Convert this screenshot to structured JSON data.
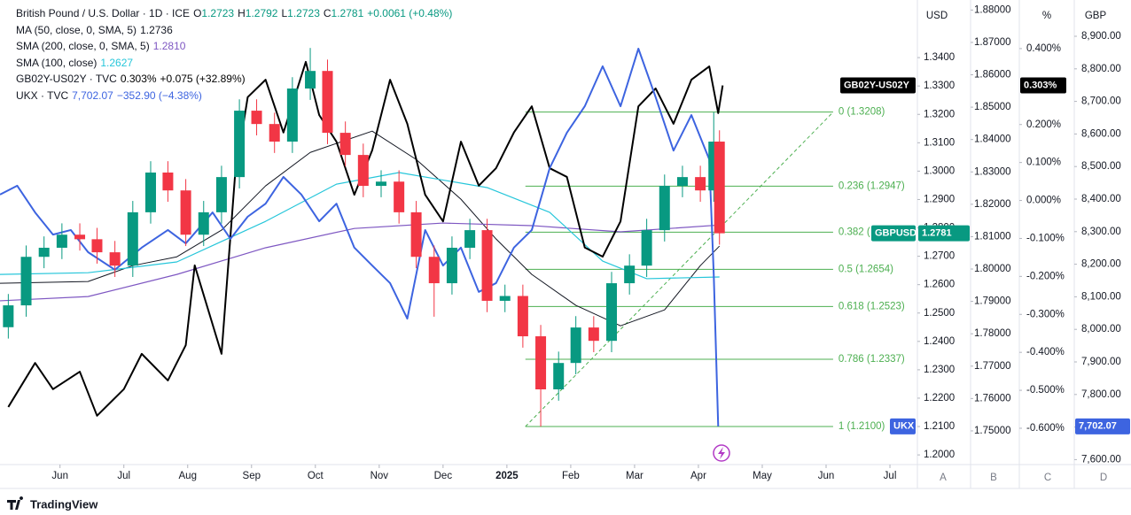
{
  "chart_data": {
    "type": "candlestick",
    "header": {
      "title": "British Pound / U.S. Dollar · 1D · ICE",
      "ohlc": [
        {
          "label": "O",
          "value": "1.2723"
        },
        {
          "label": "H",
          "value": "1.2792"
        },
        {
          "label": "L",
          "value": "1.2723"
        },
        {
          "label": "C",
          "value": "1.2781"
        }
      ],
      "change": "+0.0061 (+0.48%)"
    },
    "up_color": "#089981",
    "down_color": "#f23645",
    "x": [
      -0.81,
      -0.53,
      -0.25,
      0.03,
      0.31,
      0.58,
      0.86,
      1.14,
      1.42,
      1.69,
      1.97,
      2.25,
      2.53,
      2.81,
      3.08,
      3.36,
      3.64,
      3.92,
      4.19,
      4.47,
      4.75,
      5.03,
      5.31,
      5.58,
      5.86,
      6.14,
      6.42,
      6.69,
      6.97,
      7.25,
      7.53,
      7.81,
      8.08,
      8.36,
      8.64,
      8.92,
      9.19,
      9.47,
      9.75,
      10.03,
      10.24,
      10.33
    ],
    "open": [
      1.245,
      1.2527,
      1.2698,
      1.273,
      1.2776,
      1.276,
      1.2714,
      1.2667,
      1.2855,
      1.2995,
      1.2932,
      1.2776,
      1.2855,
      1.2979,
      1.3213,
      1.3166,
      1.3104,
      1.3291,
      1.3353,
      1.3135,
      1.3057,
      1.2948,
      1.2963,
      1.2855,
      1.2698,
      1.2605,
      1.273,
      1.2792,
      1.2543,
      1.256,
      1.2418,
      1.2231,
      1.2324,
      1.2449,
      1.2402,
      1.2605,
      1.2667,
      1.2792,
      1.2948,
      1.2979,
      1.2932,
      1.3104
    ],
    "high": [
      1.2567,
      1.2738,
      1.277,
      1.2816,
      1.2816,
      1.28,
      1.2754,
      1.2895,
      1.3035,
      1.3035,
      1.2972,
      1.2895,
      1.3019,
      1.3253,
      1.3253,
      1.3206,
      1.3331,
      1.3434,
      1.3393,
      1.3175,
      1.3097,
      1.3003,
      1.3003,
      1.2895,
      1.2738,
      1.277,
      1.2832,
      1.2832,
      1.26,
      1.26,
      1.2458,
      1.2364,
      1.2489,
      1.2489,
      1.2645,
      1.2707,
      1.2832,
      1.2988,
      1.3019,
      1.3019,
      1.3208,
      1.3144
    ],
    "low": [
      1.241,
      1.2487,
      1.2658,
      1.269,
      1.272,
      1.2674,
      1.2627,
      1.2627,
      1.2815,
      1.2892,
      1.2736,
      1.2736,
      1.2815,
      1.2939,
      1.3126,
      1.3064,
      1.3064,
      1.3251,
      1.3095,
      1.3017,
      1.2908,
      1.2908,
      1.2815,
      1.2658,
      1.2487,
      1.2565,
      1.269,
      1.2503,
      1.2503,
      1.2378,
      1.21,
      1.2191,
      1.2284,
      1.2362,
      1.2362,
      1.2565,
      1.2627,
      1.2752,
      1.2908,
      1.2892,
      1.2892,
      1.2741
    ],
    "close": [
      1.2527,
      1.2698,
      1.273,
      1.2776,
      1.276,
      1.2714,
      1.2667,
      1.2855,
      1.2995,
      1.2932,
      1.2776,
      1.2855,
      1.2979,
      1.3213,
      1.3166,
      1.3104,
      1.3291,
      1.3353,
      1.3135,
      1.3057,
      1.2948,
      1.2963,
      1.2855,
      1.2698,
      1.2605,
      1.273,
      1.2792,
      1.2543,
      1.256,
      1.2418,
      1.2231,
      1.2324,
      1.2449,
      1.2402,
      1.2605,
      1.2667,
      1.2792,
      1.2948,
      1.2979,
      1.2932,
      1.3104,
      1.2781
    ],
    "price_tag": "GBPUSD",
    "series": [
      {
        "name": "MA (50, close, 0, SMA, 5)",
        "value_label": "1.2736",
        "color": "#131722",
        "width": 1,
        "axis": "y",
        "x": [
          -0.94,
          0.44,
          1.14,
          1.83,
          2.53,
          3.22,
          3.92,
          4.89,
          5.58,
          6.28,
          6.83,
          7.39,
          8.08,
          8.78,
          9.47,
          10.03,
          10.33
        ],
        "values": [
          1.2605,
          1.2611,
          1.2667,
          1.2698,
          1.2792,
          1.2948,
          1.3066,
          1.3141,
          1.3041,
          1.2901,
          1.2761,
          1.2636,
          1.2527,
          1.2455,
          1.2511,
          1.2667,
          1.2736
        ]
      },
      {
        "name": "SMA (200, close, 0, SMA, 5)",
        "value_label": "1.2810",
        "color": "#7e57c2",
        "width": 1.2,
        "axis": "y",
        "x": [
          -0.94,
          0.44,
          1.83,
          3.22,
          4.61,
          6.0,
          7.39,
          8.78,
          10.33
        ],
        "values": [
          1.2543,
          1.2558,
          1.2636,
          1.273,
          1.2798,
          1.2817,
          1.2808,
          1.2786,
          1.281
        ]
      },
      {
        "name": "SMA (100, close)",
        "value_label": "1.2627",
        "color": "#26c6da",
        "width": 1.2,
        "axis": "y",
        "x": [
          -0.94,
          0.44,
          1.83,
          3.22,
          4.33,
          5.31,
          6.69,
          7.67,
          8.5,
          9.19,
          10.33
        ],
        "values": [
          1.2636,
          1.2642,
          1.268,
          1.2823,
          1.2954,
          1.2995,
          1.2942,
          1.2855,
          1.2683,
          1.2621,
          1.2627
        ]
      },
      {
        "name": "GB02Y-US02Y · TVC",
        "tag": "GB02Y-US02Y",
        "value_label": "0.303%",
        "change": "+0.075 (+32.89%)",
        "color": "#000000",
        "width": 2,
        "axis": "y2",
        "x": [
          -0.81,
          -0.39,
          -0.11,
          0.31,
          0.58,
          1.0,
          1.28,
          1.69,
          1.97,
          2.11,
          2.53,
          2.74,
          2.94,
          3.22,
          3.5,
          3.85,
          4.06,
          4.33,
          4.61,
          4.89,
          5.17,
          5.44,
          5.72,
          6.0,
          6.28,
          6.56,
          6.83,
          7.11,
          7.39,
          7.67,
          7.94,
          8.22,
          8.5,
          8.78,
          9.06,
          9.33,
          9.61,
          9.89,
          10.17,
          10.31,
          10.38
        ],
        "values": [
          -0.544,
          -0.428,
          -0.497,
          -0.451,
          -0.567,
          -0.497,
          -0.404,
          -0.474,
          -0.381,
          -0.171,
          -0.404,
          0.062,
          0.272,
          0.318,
          0.179,
          0.365,
          0.225,
          0.155,
          0.015,
          0.132,
          0.318,
          0.202,
          0.015,
          -0.055,
          0.155,
          0.039,
          0.085,
          0.179,
          0.248,
          0.085,
          0.062,
          -0.124,
          -0.148,
          -0.055,
          0.248,
          0.295,
          0.202,
          0.318,
          0.353,
          0.23,
          0.303
        ]
      },
      {
        "name": "UKX · TVC",
        "tag": "UKX",
        "value_label": "7,702.07",
        "change": "−352.90 (−4.38%)",
        "color": "#3d64e0",
        "width": 2,
        "axis": "y3",
        "x": [
          -0.94,
          -0.67,
          -0.39,
          -0.11,
          0.17,
          0.44,
          0.86,
          1.28,
          1.69,
          1.97,
          2.39,
          2.67,
          2.94,
          3.22,
          3.5,
          3.78,
          4.06,
          4.33,
          4.61,
          4.89,
          5.17,
          5.44,
          5.72,
          6.0,
          6.28,
          6.56,
          6.83,
          7.11,
          7.39,
          7.67,
          7.94,
          8.22,
          8.5,
          8.78,
          9.06,
          9.33,
          9.61,
          9.89,
          10.17,
          10.24,
          10.31
        ],
        "values": [
          8414,
          8441,
          8359,
          8291,
          8305,
          8237,
          8183,
          8251,
          8305,
          8264,
          8359,
          8278,
          8346,
          8386,
          8468,
          8414,
          8332,
          8386,
          8251,
          8196,
          8142,
          8033,
          8305,
          8196,
          8251,
          8115,
          8142,
          8251,
          8305,
          8495,
          8604,
          8685,
          8808,
          8685,
          8862,
          8713,
          8549,
          8658,
          8522,
          8169,
          7702.07
        ]
      }
    ],
    "fib": {
      "color": "#4caf50",
      "x": [
        7.29,
        12.11
      ],
      "levels": [
        {
          "price": 1.3208,
          "label": "0 (1.3208)"
        },
        {
          "price": 1.2947,
          "label": "0.236 (1.2947)"
        },
        {
          "price": 1.2785,
          "label": "0.382 ("
        },
        {
          "price": 1.2654,
          "label": "0.5 (1.2654)"
        },
        {
          "price": 1.2523,
          "label": "0.618 (1.2523)"
        },
        {
          "price": 1.2337,
          "label": "0.786 (1.2337)"
        },
        {
          "price": 1.21,
          "label": "1 (1.2100)"
        }
      ]
    },
    "xlim": [
      -0.94,
      13.43
    ],
    "xticks": [
      {
        "value": 0,
        "label": "Jun"
      },
      {
        "value": 1,
        "label": "Jul"
      },
      {
        "value": 2,
        "label": "Aug"
      },
      {
        "value": 3,
        "label": "Sep"
      },
      {
        "value": 4,
        "label": "Oct"
      },
      {
        "value": 5,
        "label": "Nov"
      },
      {
        "value": 6,
        "label": "Dec"
      },
      {
        "value": 7,
        "label": "2025"
      },
      {
        "value": 8,
        "label": "Feb"
      },
      {
        "value": 9,
        "label": "Mar"
      },
      {
        "value": 10,
        "label": "Apr"
      },
      {
        "value": 11,
        "label": "May"
      },
      {
        "value": 12,
        "label": "Jun"
      },
      {
        "value": 13,
        "label": "Jul"
      }
    ],
    "ylabel": "USD",
    "ylim": [
      1.1966,
      1.3603
    ],
    "yticks": [
      {
        "value": 1.2,
        "label": "1.2000"
      },
      {
        "value": 1.21,
        "label": "1.2100"
      },
      {
        "value": 1.22,
        "label": "1.2200"
      },
      {
        "value": 1.23,
        "label": "1.2300"
      },
      {
        "value": 1.24,
        "label": "1.2400"
      },
      {
        "value": 1.25,
        "label": "1.2500"
      },
      {
        "value": 1.26,
        "label": "1.2600"
      },
      {
        "value": 1.27,
        "label": "1.2700"
      },
      {
        "value": 1.28,
        "label": "1.2800"
      },
      {
        "value": 1.29,
        "label": "1.2900"
      },
      {
        "value": 1.3,
        "label": "1.3000"
      },
      {
        "value": 1.31,
        "label": "1.3100"
      },
      {
        "value": 1.32,
        "label": "1.3200"
      },
      {
        "value": 1.33,
        "label": "1.3300"
      },
      {
        "value": 1.34,
        "label": "1.3400"
      }
    ],
    "y4lim": [
      1.7396,
      1.8831
    ],
    "y4ticks": [
      {
        "value": 1.75,
        "label": "1.75000"
      },
      {
        "value": 1.76,
        "label": "1.76000"
      },
      {
        "value": 1.77,
        "label": "1.77000"
      },
      {
        "value": 1.78,
        "label": "1.78000"
      },
      {
        "value": 1.79,
        "label": "1.79000"
      },
      {
        "value": 1.8,
        "label": "1.80000"
      },
      {
        "value": 1.81,
        "label": "1.81000"
      },
      {
        "value": 1.82,
        "label": "1.82000"
      },
      {
        "value": 1.83,
        "label": "1.83000"
      },
      {
        "value": 1.84,
        "label": "1.84000"
      },
      {
        "value": 1.85,
        "label": "1.85000"
      },
      {
        "value": 1.86,
        "label": "1.86000"
      },
      {
        "value": 1.87,
        "label": "1.87000"
      },
      {
        "value": 1.88,
        "label": "1.88000"
      }
    ],
    "y2label": "%",
    "y2lim": [
      -0.6956,
      0.528
    ],
    "y2ticks": [
      {
        "value": 0.4,
        "label": "0.400%"
      },
      {
        "value": 0.2,
        "label": "0.200%"
      },
      {
        "value": 0.1,
        "label": "0.100%"
      },
      {
        "value": 0,
        "label": "0.000%"
      },
      {
        "value": -0.1,
        "label": "-0.100%"
      },
      {
        "value": -0.2,
        "label": "-0.200%"
      },
      {
        "value": -0.3,
        "label": "-0.300%"
      },
      {
        "value": -0.4,
        "label": "-0.400%"
      },
      {
        "value": -0.5,
        "label": "-0.500%"
      },
      {
        "value": -0.6,
        "label": "-0.600%"
      }
    ],
    "y3label": "GBP",
    "y3lim": [
      7584.8,
      9011.4
    ],
    "y3ticks": [
      {
        "value": 7600,
        "label": "7,600.00"
      },
      {
        "value": 7700,
        "label": "7,700.00"
      },
      {
        "value": 7800,
        "label": "7,800.00"
      },
      {
        "value": 7900,
        "label": "7,900.00"
      },
      {
        "value": 8000,
        "label": "8,000.00"
      },
      {
        "value": 8100,
        "label": "8,100.00"
      },
      {
        "value": 8200,
        "label": "8,200.00"
      },
      {
        "value": 8300,
        "label": "8,300.00"
      },
      {
        "value": 8400,
        "label": "8,400.00"
      },
      {
        "value": 8500,
        "label": "8,500.00"
      },
      {
        "value": 8600,
        "label": "8,600.00"
      },
      {
        "value": 8700,
        "label": "8,700.00"
      },
      {
        "value": 8800,
        "label": "8,800.00"
      },
      {
        "value": 8900,
        "label": "8,900.00"
      }
    ],
    "axis_letters": [
      "A",
      "B",
      "C",
      "D"
    ],
    "grid": false,
    "brand": "TradingView"
  }
}
